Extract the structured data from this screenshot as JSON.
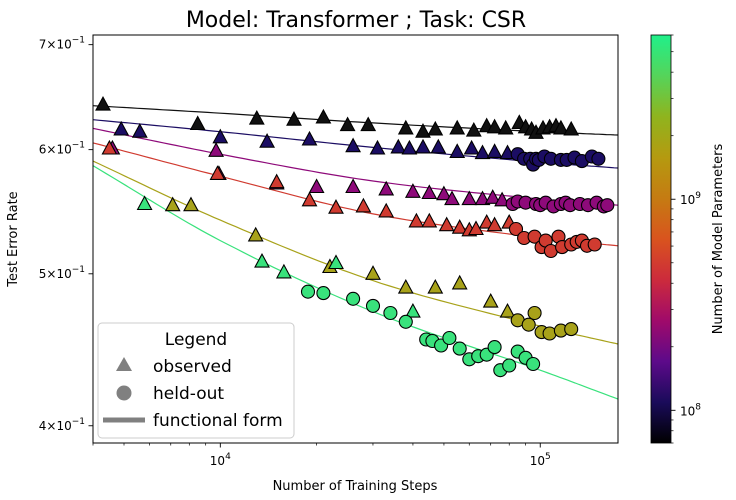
{
  "chart_data": {
    "type": "scatter",
    "title": "Model: Transformer ; Task: CSR",
    "xlabel": "Number of Training Steps",
    "ylabel": "Test Error Rate",
    "x_scale": "log",
    "y_scale": "log",
    "xlim": [
      4000,
      175000
    ],
    "ylim": [
      0.39,
      0.71
    ],
    "grid": false,
    "x_ticks": [
      {
        "value": 10000,
        "base": "10",
        "exp": "4"
      },
      {
        "value": 100000,
        "base": "10",
        "exp": "5"
      }
    ],
    "y_ticks": [
      {
        "value": 0.4,
        "mant": "4",
        "exp": "−1"
      },
      {
        "value": 0.5,
        "mant": "5",
        "exp": "−1"
      },
      {
        "value": 0.6,
        "mant": "6",
        "exp": "−1"
      },
      {
        "value": 0.7,
        "mant": "7",
        "exp": "−1"
      }
    ],
    "legend": {
      "title": "Legend",
      "position": "lower-left",
      "entries": [
        {
          "marker": "triangle",
          "label": "observed"
        },
        {
          "marker": "circle",
          "label": "held-out"
        },
        {
          "marker": "line",
          "label": "functional form"
        }
      ]
    },
    "colorbar": {
      "label": "Number of Model Parameters",
      "scale": "log",
      "range": [
        70000000,
        6000000000
      ],
      "ticks": [
        {
          "value": 100000000,
          "base": "10",
          "exp": "8"
        },
        {
          "value": 1000000000,
          "base": "10",
          "exp": "9"
        }
      ],
      "colormap": [
        "#000000",
        "#1a0b5a",
        "#5d0a8a",
        "#a00a6a",
        "#cc2b3c",
        "#d9541e",
        "#c57b12",
        "#b59a10",
        "#8fb41e",
        "#55d45a",
        "#20f08a"
      ]
    },
    "series": [
      {
        "color": "#111111",
        "curve": {
          "x": [
            4000,
            10000,
            30000,
            100000,
            175000
          ],
          "y": [
            0.64,
            0.633,
            0.624,
            0.616,
            0.613
          ]
        },
        "observed": [
          [
            4300,
            0.641
          ],
          [
            8500,
            0.623
          ],
          [
            13000,
            0.628
          ],
          [
            17000,
            0.627
          ],
          [
            21000,
            0.629
          ],
          [
            25000,
            0.622
          ],
          [
            29000,
            0.622
          ],
          [
            38000,
            0.619
          ],
          [
            43000,
            0.616
          ],
          [
            47000,
            0.618
          ],
          [
            55000,
            0.619
          ],
          [
            62000,
            0.617
          ],
          [
            68000,
            0.621
          ],
          [
            72000,
            0.62
          ],
          [
            78000,
            0.619
          ],
          [
            86000,
            0.624
          ],
          [
            90000,
            0.62
          ],
          [
            94000,
            0.618
          ],
          [
            97000,
            0.615
          ],
          [
            102000,
            0.619
          ],
          [
            107000,
            0.62
          ],
          [
            112000,
            0.621
          ],
          [
            116000,
            0.619
          ],
          [
            125000,
            0.618
          ]
        ],
        "held_out": []
      },
      {
        "color": "#1b0d63",
        "curve": {
          "x": [
            4000,
            10000,
            30000,
            100000,
            175000
          ],
          "y": [
            0.627,
            0.616,
            0.602,
            0.589,
            0.584
          ]
        },
        "observed": [
          [
            4900,
            0.618
          ],
          [
            5600,
            0.616
          ],
          [
            10000,
            0.611
          ],
          [
            14000,
            0.607
          ],
          [
            19000,
            0.609
          ],
          [
            26000,
            0.603
          ],
          [
            31000,
            0.601
          ],
          [
            36000,
            0.602
          ],
          [
            39000,
            0.601
          ],
          [
            43000,
            0.602
          ],
          [
            48000,
            0.602
          ],
          [
            55000,
            0.598
          ],
          [
            61000,
            0.601
          ],
          [
            66000,
            0.597
          ],
          [
            72000,
            0.598
          ],
          [
            79000,
            0.597
          ]
        ],
        "held_out": [
          [
            85000,
            0.596
          ],
          [
            89000,
            0.592
          ],
          [
            93000,
            0.592
          ],
          [
            95000,
            0.587
          ],
          [
            97000,
            0.592
          ],
          [
            99000,
            0.591
          ],
          [
            103000,
            0.594
          ],
          [
            108000,
            0.592
          ],
          [
            116000,
            0.591
          ],
          [
            121000,
            0.591
          ],
          [
            128000,
            0.593
          ],
          [
            135000,
            0.59
          ],
          [
            145000,
            0.594
          ],
          [
            152000,
            0.592
          ]
        ]
      },
      {
        "color": "#8e0a7a",
        "curve": {
          "x": [
            4000,
            10000,
            30000,
            100000,
            175000
          ],
          "y": [
            0.619,
            0.596,
            0.573,
            0.558,
            0.553
          ]
        },
        "observed": [
          [
            4600,
            0.601
          ],
          [
            9700,
            0.599
          ],
          [
            9900,
            0.579
          ],
          [
            15000,
            0.571
          ],
          [
            20000,
            0.568
          ],
          [
            26000,
            0.568
          ],
          [
            33000,
            0.566
          ],
          [
            40000,
            0.564
          ],
          [
            45000,
            0.563
          ],
          [
            50000,
            0.562
          ],
          [
            53000,
            0.558
          ],
          [
            60000,
            0.558
          ],
          [
            66000,
            0.558
          ],
          [
            71000,
            0.559
          ],
          [
            76000,
            0.557
          ]
        ],
        "held_out": [
          [
            82000,
            0.554
          ],
          [
            85000,
            0.556
          ],
          [
            90000,
            0.555
          ],
          [
            97000,
            0.554
          ],
          [
            100000,
            0.553
          ],
          [
            104000,
            0.555
          ],
          [
            110000,
            0.552
          ],
          [
            116000,
            0.554
          ],
          [
            120000,
            0.555
          ],
          [
            124000,
            0.553
          ],
          [
            133000,
            0.554
          ],
          [
            141000,
            0.553
          ],
          [
            150000,
            0.555
          ],
          [
            158000,
            0.552
          ],
          [
            162000,
            0.553
          ]
        ]
      },
      {
        "color": "#d03b30",
        "curve": {
          "x": [
            4000,
            10000,
            30000,
            100000,
            175000
          ],
          "y": [
            0.606,
            0.577,
            0.546,
            0.527,
            0.521
          ]
        },
        "observed": [
          [
            4500,
            0.601
          ],
          [
            9800,
            0.579
          ],
          [
            15000,
            0.572
          ],
          [
            19000,
            0.557
          ],
          [
            23000,
            0.551
          ],
          [
            28000,
            0.552
          ],
          [
            33000,
            0.548
          ],
          [
            41000,
            0.54
          ],
          [
            45000,
            0.54
          ],
          [
            51000,
            0.537
          ],
          [
            56000,
            0.535
          ],
          [
            60000,
            0.533
          ],
          [
            63000,
            0.534
          ],
          [
            68000,
            0.539
          ],
          [
            72000,
            0.537
          ],
          [
            80000,
            0.539
          ]
        ],
        "held_out": [
          [
            84000,
            0.534
          ],
          [
            89000,
            0.527
          ],
          [
            96000,
            0.528
          ],
          [
            101000,
            0.52
          ],
          [
            104000,
            0.525
          ],
          [
            108000,
            0.517
          ],
          [
            114000,
            0.528
          ],
          [
            117000,
            0.52
          ],
          [
            125000,
            0.522
          ],
          [
            130000,
            0.524
          ],
          [
            135000,
            0.525
          ],
          [
            140000,
            0.521
          ],
          [
            148000,
            0.522
          ]
        ]
      },
      {
        "color": "#a8a21a",
        "curve": {
          "x": [
            4000,
            10000,
            30000,
            100000,
            175000
          ],
          "y": [
            0.59,
            0.541,
            0.495,
            0.463,
            0.451
          ]
        },
        "observed": [
          [
            7100,
            0.553
          ],
          [
            8100,
            0.553
          ],
          [
            12900,
            0.529
          ],
          [
            22000,
            0.505
          ],
          [
            30000,
            0.5
          ],
          [
            38000,
            0.49
          ],
          [
            47000,
            0.49
          ],
          [
            56000,
            0.493
          ],
          [
            70000,
            0.48
          ],
          [
            79000,
            0.473
          ]
        ],
        "held_out": [
          [
            85000,
            0.467
          ],
          [
            92000,
            0.464
          ],
          [
            96000,
            0.472
          ],
          [
            101000,
            0.459
          ],
          [
            107000,
            0.458
          ],
          [
            116000,
            0.46
          ],
          [
            125000,
            0.461
          ]
        ]
      },
      {
        "color": "#39e27c",
        "curve": {
          "x": [
            4000,
            10000,
            30000,
            100000,
            175000
          ],
          "y": [
            0.586,
            0.525,
            0.473,
            0.434,
            0.416
          ]
        },
        "observed": [
          [
            5800,
            0.554
          ],
          [
            13500,
            0.509
          ],
          [
            15800,
            0.501
          ],
          [
            23000,
            0.508
          ],
          [
            40000,
            0.473
          ]
        ],
        "held_out": [
          [
            18800,
            0.487
          ],
          [
            21000,
            0.486
          ],
          [
            26000,
            0.482
          ],
          [
            30000,
            0.477
          ],
          [
            34000,
            0.472
          ],
          [
            38000,
            0.466
          ],
          [
            44000,
            0.454
          ],
          [
            46000,
            0.453
          ],
          [
            49000,
            0.45
          ],
          [
            52000,
            0.455
          ],
          [
            56000,
            0.448
          ],
          [
            60000,
            0.441
          ],
          [
            64000,
            0.443
          ],
          [
            68000,
            0.444
          ],
          [
            72000,
            0.449
          ],
          [
            75000,
            0.434
          ],
          [
            80000,
            0.437
          ],
          [
            85000,
            0.446
          ],
          [
            90000,
            0.442
          ],
          [
            95000,
            0.438
          ]
        ]
      }
    ]
  }
}
